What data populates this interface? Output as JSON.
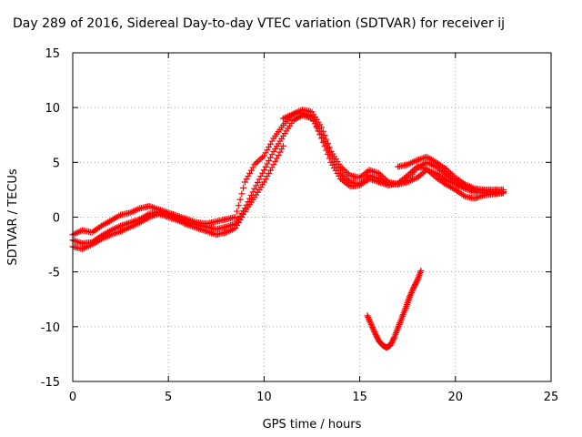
{
  "chart_data": {
    "type": "scatter",
    "title": "Day 289 of 2016, Sidereal Day-to-day VTEC variation (SDTVAR) for receiver ij",
    "xlabel": "GPS time / hours",
    "ylabel": "SDTVAR / TECUs",
    "xlim": [
      0,
      25
    ],
    "ylim": [
      -15,
      15
    ],
    "xticks": [
      0,
      5,
      10,
      15,
      20,
      25
    ],
    "yticks": [
      -15,
      -10,
      -5,
      0,
      5,
      10,
      15
    ],
    "grid": true,
    "marker": "+",
    "color": "#ff0000",
    "series": [
      {
        "tracks": [
          [
            [
              0.0,
              -1.6
            ],
            [
              0.5,
              -1.2
            ],
            [
              1.0,
              -1.4
            ],
            [
              1.5,
              -0.8
            ],
            [
              2.0,
              -0.3
            ],
            [
              2.5,
              0.2
            ],
            [
              3.0,
              0.4
            ],
            [
              3.5,
              0.8
            ],
            [
              4.0,
              1.0
            ],
            [
              4.5,
              0.7
            ],
            [
              5.0,
              0.4
            ],
            [
              5.5,
              0.1
            ],
            [
              6.0,
              -0.2
            ],
            [
              6.5,
              -0.5
            ],
            [
              7.0,
              -0.6
            ],
            [
              7.5,
              -0.4
            ],
            [
              8.0,
              -0.2
            ],
            [
              8.5,
              0.0
            ],
            [
              9.0,
              3.2
            ],
            [
              9.5,
              4.8
            ],
            [
              10.0,
              5.6
            ],
            [
              10.5,
              7.2
            ],
            [
              11.0,
              8.4
            ],
            [
              11.5,
              9.4
            ],
            [
              12.0,
              9.8
            ],
            [
              12.5,
              9.6
            ],
            [
              13.0,
              8.2
            ],
            [
              13.5,
              6.0
            ],
            [
              14.0,
              4.6
            ],
            [
              14.5,
              3.8
            ],
            [
              15.0,
              3.6
            ],
            [
              15.5,
              4.3
            ],
            [
              16.0,
              4.0
            ],
            [
              16.5,
              3.2
            ],
            [
              17.0,
              3.0
            ],
            [
              17.5,
              3.2
            ],
            [
              18.0,
              3.6
            ],
            [
              18.5,
              4.3
            ],
            [
              19.0,
              4.0
            ],
            [
              19.5,
              3.4
            ],
            [
              20.0,
              3.0
            ],
            [
              20.5,
              2.6
            ],
            [
              21.0,
              2.3
            ],
            [
              21.5,
              2.2
            ],
            [
              22.0,
              2.2
            ],
            [
              22.5,
              2.3
            ]
          ],
          [
            [
              0.0,
              -2.1
            ],
            [
              0.5,
              -2.4
            ],
            [
              1.0,
              -2.3
            ],
            [
              1.5,
              -1.7
            ],
            [
              2.0,
              -1.2
            ],
            [
              2.5,
              -0.8
            ],
            [
              3.0,
              -0.5
            ],
            [
              3.5,
              -0.2
            ],
            [
              4.0,
              0.3
            ],
            [
              4.5,
              0.5
            ],
            [
              5.0,
              0.2
            ],
            [
              5.5,
              -0.1
            ],
            [
              6.0,
              -0.5
            ],
            [
              6.5,
              -0.7
            ],
            [
              7.0,
              -0.9
            ],
            [
              7.5,
              -1.1
            ],
            [
              8.0,
              -0.9
            ],
            [
              8.5,
              -0.6
            ],
            [
              9.0,
              0.8
            ],
            [
              9.5,
              2.6
            ],
            [
              10.0,
              4.3
            ],
            [
              10.5,
              6.0
            ],
            [
              11.0,
              7.4
            ],
            [
              11.5,
              8.8
            ],
            [
              12.0,
              9.3
            ],
            [
              12.5,
              9.0
            ],
            [
              13.0,
              7.6
            ],
            [
              13.5,
              5.6
            ],
            [
              14.0,
              4.0
            ],
            [
              14.5,
              3.2
            ],
            [
              15.0,
              3.0
            ],
            [
              15.5,
              3.8
            ],
            [
              16.0,
              3.5
            ],
            [
              16.5,
              3.0
            ],
            [
              17.0,
              3.0
            ],
            [
              17.5,
              3.4
            ],
            [
              18.0,
              4.5
            ],
            [
              18.5,
              5.0
            ],
            [
              19.0,
              4.6
            ],
            [
              19.5,
              3.9
            ],
            [
              20.0,
              3.3
            ],
            [
              20.5,
              2.8
            ],
            [
              21.0,
              2.5
            ],
            [
              21.5,
              2.4
            ],
            [
              22.0,
              2.3
            ],
            [
              22.5,
              2.3
            ]
          ],
          [
            [
              0.0,
              -2.7
            ],
            [
              0.5,
              -2.9
            ],
            [
              1.0,
              -2.5
            ],
            [
              1.5,
              -2.0
            ],
            [
              2.0,
              -1.6
            ],
            [
              2.5,
              -1.3
            ],
            [
              3.0,
              -0.9
            ],
            [
              3.5,
              -0.5
            ],
            [
              4.0,
              0.0
            ],
            [
              4.5,
              0.3
            ],
            [
              5.0,
              0.0
            ],
            [
              5.5,
              -0.3
            ],
            [
              6.0,
              -0.7
            ],
            [
              6.5,
              -1.0
            ],
            [
              7.0,
              -1.3
            ],
            [
              7.5,
              -1.6
            ],
            [
              8.0,
              -1.4
            ],
            [
              8.5,
              -1.0
            ],
            [
              9.0,
              0.5
            ],
            [
              9.5,
              1.8
            ],
            [
              10.0,
              3.2
            ],
            [
              10.5,
              4.8
            ],
            [
              11.0,
              6.5
            ]
          ],
          [
            [
              11.0,
              9.0
            ],
            [
              11.5,
              9.4
            ],
            [
              12.0,
              9.5
            ],
            [
              12.5,
              9.2
            ],
            [
              13.0,
              7.2
            ],
            [
              13.5,
              5.0
            ],
            [
              14.0,
              3.5
            ],
            [
              14.5,
              2.8
            ],
            [
              15.0,
              2.9
            ],
            [
              15.5,
              3.5
            ],
            [
              16.0,
              3.2
            ],
            [
              16.5,
              2.9
            ],
            [
              17.0,
              3.1
            ],
            [
              17.5,
              3.8
            ],
            [
              18.0,
              4.6
            ],
            [
              18.5,
              4.4
            ],
            [
              19.0,
              3.6
            ],
            [
              19.5,
              3.0
            ],
            [
              20.0,
              2.5
            ],
            [
              20.5,
              1.9
            ],
            [
              21.0,
              1.7
            ],
            [
              21.5,
              2.0
            ],
            [
              22.0,
              2.1
            ],
            [
              22.5,
              2.2
            ]
          ],
          [
            [
              17.0,
              4.6
            ],
            [
              17.5,
              4.8
            ],
            [
              18.0,
              5.2
            ],
            [
              18.5,
              5.5
            ],
            [
              19.0,
              5.0
            ],
            [
              19.5,
              4.4
            ],
            [
              20.0,
              3.6
            ],
            [
              20.5,
              3.0
            ],
            [
              21.0,
              2.6
            ],
            [
              21.5,
              2.5
            ],
            [
              22.0,
              2.5
            ],
            [
              22.5,
              2.5
            ]
          ],
          [
            [
              15.4,
              -9.0
            ],
            [
              15.6,
              -9.8
            ],
            [
              15.8,
              -10.6
            ],
            [
              16.0,
              -11.3
            ],
            [
              16.2,
              -11.7
            ],
            [
              16.4,
              -11.9
            ],
            [
              16.6,
              -11.7
            ],
            [
              16.8,
              -11.0
            ],
            [
              17.0,
              -10.1
            ],
            [
              17.2,
              -9.2
            ],
            [
              17.4,
              -8.3
            ],
            [
              17.6,
              -7.3
            ],
            [
              17.8,
              -6.5
            ],
            [
              18.0,
              -5.8
            ],
            [
              18.2,
              -4.9
            ]
          ]
        ]
      }
    ]
  }
}
